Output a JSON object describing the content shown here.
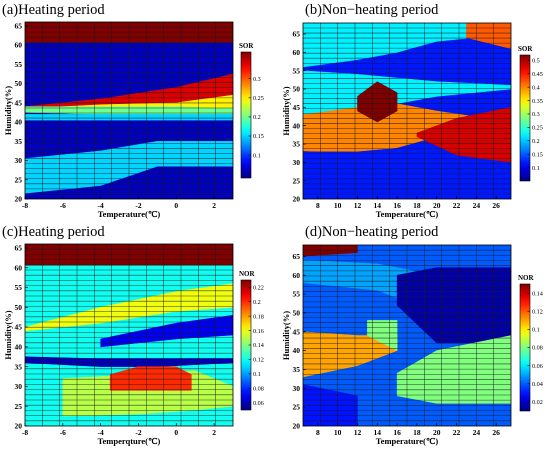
{
  "chart_data": [
    {
      "type": "heatmap",
      "title": "(a)Heating period",
      "xlabel": "Temperature(℃)",
      "ylabel": "Humidity(%)",
      "xlim": [
        -8,
        3
      ],
      "ylim": [
        20,
        66
      ],
      "xticks": [
        -8,
        -6,
        -4,
        -2,
        0,
        2
      ],
      "yticks": [
        20,
        25,
        30,
        35,
        40,
        45,
        50,
        55,
        60,
        65
      ],
      "colorbar": {
        "label": "SOR",
        "range": [
          0.04,
          0.37
        ],
        "ticks": [
          0.1,
          0.15,
          0.2,
          0.25,
          0.3
        ]
      },
      "bands": [
        {
          "top": [
            [
              -8,
              66
            ],
            [
              3,
              66
            ]
          ],
          "bottom": [
            [
              -8,
              60.5
            ],
            [
              3,
              60.5
            ]
          ],
          "value": 0.37
        },
        {
          "top": [
            [
              -8,
              60.5
            ],
            [
              3,
              60.5
            ]
          ],
          "bottom": [
            [
              -8,
              44
            ],
            [
              -4,
              46
            ],
            [
              0,
              49
            ],
            [
              3,
              52.5
            ]
          ],
          "value": 0.06
        },
        {
          "top": [
            [
              -8,
              44
            ],
            [
              -4,
              46
            ],
            [
              0,
              49
            ],
            [
              3,
              52.5
            ]
          ],
          "bottom": [
            [
              -8,
              43.5
            ],
            [
              -4,
              44.5
            ],
            [
              0,
              45
            ],
            [
              3,
              47
            ]
          ],
          "value": 0.34
        },
        {
          "top": [
            [
              -8,
              43.5
            ],
            [
              -4,
              44.5
            ],
            [
              0,
              45
            ],
            [
              3,
              47
            ]
          ],
          "bottom": [
            [
              -8,
              42.5
            ],
            [
              -4,
              43
            ],
            [
              0,
              43
            ],
            [
              3,
              43
            ]
          ],
          "value": 0.25
        },
        {
          "top": [
            [
              -8,
              42.5
            ],
            [
              -4,
              43
            ],
            [
              0,
              43
            ],
            [
              3,
              43
            ]
          ],
          "bottom": [
            [
              -8,
              20
            ],
            [
              3,
              20
            ]
          ],
          "value": 0.06
        },
        {
          "top": [
            [
              -8,
              30.5
            ],
            [
              -4,
              32.5
            ],
            [
              -1,
              35
            ],
            [
              3,
              35
            ]
          ],
          "bottom": [
            [
              -8,
              21.5
            ],
            [
              -4,
              23.5
            ],
            [
              -1,
              28.5
            ],
            [
              3,
              28.5
            ]
          ],
          "value": 0.15
        },
        {
          "top": [
            [
              -8,
              44
            ],
            [
              -4,
              44
            ],
            [
              0,
              44
            ],
            [
              3,
              43.5
            ]
          ],
          "bottom": [
            [
              -8,
              42.5
            ],
            [
              -4,
              42
            ],
            [
              0,
              42
            ],
            [
              3,
              42
            ]
          ],
          "value": 0.2
        },
        {
          "top": [
            [
              -8,
              42
            ],
            [
              -4,
              42
            ],
            [
              0,
              42
            ],
            [
              3,
              42
            ]
          ],
          "bottom": [
            [
              -8,
              40.5
            ],
            [
              -4,
              40.5
            ],
            [
              0,
              40.5
            ],
            [
              3,
              40.5
            ]
          ],
          "value": 0.15
        }
      ]
    },
    {
      "type": "heatmap",
      "title": "(b)Non−heating period",
      "xlabel": "Temperature(℃)",
      "ylabel": "Humidity(%)",
      "xlim": [
        6.5,
        27.5
      ],
      "ylim": [
        20,
        68
      ],
      "xticks": [
        8,
        10,
        12,
        14,
        16,
        18,
        20,
        22,
        24,
        26
      ],
      "yticks": [
        20,
        25,
        30,
        35,
        40,
        45,
        50,
        55,
        60,
        65
      ],
      "colorbar": {
        "label": "SOR",
        "range": [
          0.05,
          0.52
        ],
        "ticks": [
          0.1,
          0.15,
          0.2,
          0.25,
          0.3,
          0.35,
          0.4,
          0.45,
          0.5
        ]
      },
      "bands": [
        {
          "top": [
            [
              6.5,
              68
            ],
            [
              27.5,
              68
            ]
          ],
          "bottom": [
            [
              6.5,
              20
            ],
            [
              27.5,
              20
            ]
          ],
          "value": 0.12
        },
        {
          "top": [
            [
              6.5,
              68
            ],
            [
              27.5,
              68
            ]
          ],
          "bottom": [
            [
              6.5,
              56
            ],
            [
              12,
              58
            ],
            [
              16,
              60
            ],
            [
              20,
              63
            ],
            [
              27.5,
              65
            ]
          ],
          "value": 0.22
        },
        {
          "top": [
            [
              23,
              68
            ],
            [
              27.5,
              68
            ]
          ],
          "bottom": [
            [
              23,
              64
            ],
            [
              27.5,
              61
            ]
          ],
          "value": 0.42
        },
        {
          "top": [
            [
              6.5,
              55
            ],
            [
              12,
              54
            ],
            [
              16,
              53
            ],
            [
              20,
              52
            ],
            [
              27.5,
              51
            ]
          ],
          "bottom": [
            [
              6.5,
              42
            ],
            [
              12,
              44
            ],
            [
              16,
              46
            ],
            [
              20,
              48
            ],
            [
              27.5,
              50
            ]
          ],
          "value": 0.22
        },
        {
          "top": [
            [
              6.5,
              43
            ],
            [
              12,
              45
            ],
            [
              16,
              46
            ],
            [
              20,
              44
            ],
            [
              27.5,
              41
            ]
          ],
          "bottom": [
            [
              6.5,
              33
            ],
            [
              12,
              33
            ],
            [
              16,
              34
            ],
            [
              20,
              37
            ],
            [
              27.5,
              42
            ]
          ],
          "value": 0.4
        },
        {
          "top": [
            [
              12,
              48
            ],
            [
              14,
              52
            ],
            [
              16,
              49
            ],
            [
              16,
              44
            ],
            [
              14,
              41
            ],
            [
              12,
              44
            ]
          ],
          "bottom": [
            [
              12,
              48
            ],
            [
              12,
              44
            ]
          ],
          "value": 0.52
        },
        {
          "top": [
            [
              18,
              38
            ],
            [
              22,
              42
            ],
            [
              27.5,
              45
            ]
          ],
          "bottom": [
            [
              18,
              37
            ],
            [
              22,
              32
            ],
            [
              27.5,
              30
            ]
          ],
          "value": 0.48
        },
        {
          "top": [
            [
              6.5,
              33
            ],
            [
              27.5,
              30
            ]
          ],
          "bottom": [
            [
              6.5,
              20
            ],
            [
              27.5,
              20
            ]
          ],
          "value": 0.12
        }
      ]
    },
    {
      "type": "heatmap",
      "title": "(c)Heating period",
      "xlabel": "Temperqture(℃)",
      "ylabel": "Humidity(%)",
      "xlim": [
        -8,
        3
      ],
      "ylim": [
        20,
        66
      ],
      "xticks": [
        -8,
        -6,
        -4,
        -2,
        0,
        2
      ],
      "yticks": [
        20,
        25,
        30,
        35,
        40,
        45,
        50,
        55,
        60,
        65
      ],
      "colorbar": {
        "label": "NOR",
        "range": [
          0.05,
          0.23
        ],
        "ticks": [
          0.06,
          0.08,
          0.1,
          0.12,
          0.14,
          0.16,
          0.18,
          0.2,
          0.22
        ]
      },
      "bands": [
        {
          "top": [
            [
              -8,
              66
            ],
            [
              3,
              66
            ]
          ],
          "bottom": [
            [
              -8,
              60.5
            ],
            [
              3,
              60.5
            ]
          ],
          "value": 0.23
        },
        {
          "top": [
            [
              -8,
              60.5
            ],
            [
              3,
              60.5
            ]
          ],
          "bottom": [
            [
              -8,
              20
            ],
            [
              3,
              20
            ]
          ],
          "value": 0.12
        },
        {
          "top": [
            [
              -8,
              45
            ],
            [
              -4,
              50
            ],
            [
              0,
              54
            ],
            [
              3,
              56
            ]
          ],
          "bottom": [
            [
              -8,
              44
            ],
            [
              -4,
              46
            ],
            [
              0,
              49
            ],
            [
              3,
              50
            ]
          ],
          "value": 0.16
        },
        {
          "top": [
            [
              -4,
              42
            ],
            [
              0,
              46
            ],
            [
              3,
              48
            ]
          ],
          "bottom": [
            [
              -4,
              40
            ],
            [
              0,
              42
            ],
            [
              3,
              43
            ]
          ],
          "value": 0.07
        },
        {
          "top": [
            [
              -8,
              37.5
            ],
            [
              -4,
              37
            ],
            [
              -1,
              37
            ],
            [
              3,
              37
            ]
          ],
          "bottom": [
            [
              -8,
              36
            ],
            [
              -4,
              35
            ],
            [
              -1,
              35
            ],
            [
              3,
              36
            ]
          ],
          "value": 0.06
        },
        {
          "top": [
            [
              -6,
              32
            ],
            [
              -2,
              33
            ],
            [
              1,
              34
            ],
            [
              3,
              30
            ]
          ],
          "bottom": [
            [
              -6,
              22.5
            ],
            [
              -2,
              23
            ],
            [
              1,
              24
            ],
            [
              3,
              25
            ]
          ],
          "value": 0.15
        },
        {
          "top": [
            [
              -3.5,
              33
            ],
            [
              -2,
              35
            ],
            [
              0,
              35
            ],
            [
              0.8,
              33
            ]
          ],
          "bottom": [
            [
              -3.5,
              29
            ],
            [
              -2,
              29
            ],
            [
              0,
              29
            ],
            [
              0.8,
              29
            ]
          ],
          "value": 0.2
        }
      ]
    },
    {
      "type": "heatmap",
      "title": "(d)Non−heating period",
      "xlabel": "Temperature(℃)",
      "ylabel": "Humidity(%)",
      "xlim": [
        6.5,
        27.5
      ],
      "ylim": [
        20,
        68
      ],
      "xticks": [
        8,
        10,
        12,
        14,
        16,
        18,
        20,
        22,
        24,
        26
      ],
      "yticks": [
        20,
        25,
        30,
        35,
        40,
        45,
        50,
        55,
        60,
        65
      ],
      "colorbar": {
        "label": "NOR",
        "range": [
          0.01,
          0.15
        ],
        "ticks": [
          0.02,
          0.04,
          0.06,
          0.08,
          0.1,
          0.12,
          0.14
        ]
      },
      "bands": [
        {
          "top": [
            [
              6.5,
              68
            ],
            [
              27.5,
              68
            ]
          ],
          "bottom": [
            [
              6.5,
              20
            ],
            [
              27.5,
              20
            ]
          ],
          "value": 0.04
        },
        {
          "top": [
            [
              6.5,
              68
            ],
            [
              12,
              68
            ]
          ],
          "bottom": [
            [
              6.5,
              65
            ],
            [
              12,
              66
            ]
          ],
          "value": 0.15
        },
        {
          "top": [
            [
              6.5,
              64
            ],
            [
              14,
              63
            ],
            [
              20,
              60
            ],
            [
              27.5,
              57
            ]
          ],
          "bottom": [
            [
              6.5,
              58
            ],
            [
              14,
              56
            ],
            [
              20,
              50
            ],
            [
              27.5,
              45
            ]
          ],
          "value": 0.05
        },
        {
          "top": [
            [
              16,
              60
            ],
            [
              20,
              62
            ],
            [
              27.5,
              62
            ]
          ],
          "bottom": [
            [
              16,
              52
            ],
            [
              20,
              42
            ],
            [
              27.5,
              42
            ]
          ],
          "value": 0.015
        },
        {
          "top": [
            [
              6.5,
              45
            ],
            [
              12,
              44
            ],
            [
              16,
              44
            ]
          ],
          "bottom": [
            [
              6.5,
              33
            ],
            [
              12,
              36
            ],
            [
              16,
              40
            ]
          ],
          "value": 0.11
        },
        {
          "top": [
            [
              13,
              48
            ],
            [
              16,
              48
            ]
          ],
          "bottom": [
            [
              13,
              44
            ],
            [
              16,
              40
            ]
          ],
          "value": 0.08
        },
        {
          "top": [
            [
              16,
              34
            ],
            [
              20,
              40
            ],
            [
              27.5,
              44
            ]
          ],
          "bottom": [
            [
              16,
              28
            ],
            [
              20,
              26
            ],
            [
              27.5,
              26
            ]
          ],
          "value": 0.08
        },
        {
          "top": [
            [
              6.5,
              31
            ],
            [
              12,
              28
            ]
          ],
          "bottom": [
            [
              6.5,
              20
            ],
            [
              12,
              20
            ]
          ],
          "value": 0.03
        }
      ]
    }
  ]
}
